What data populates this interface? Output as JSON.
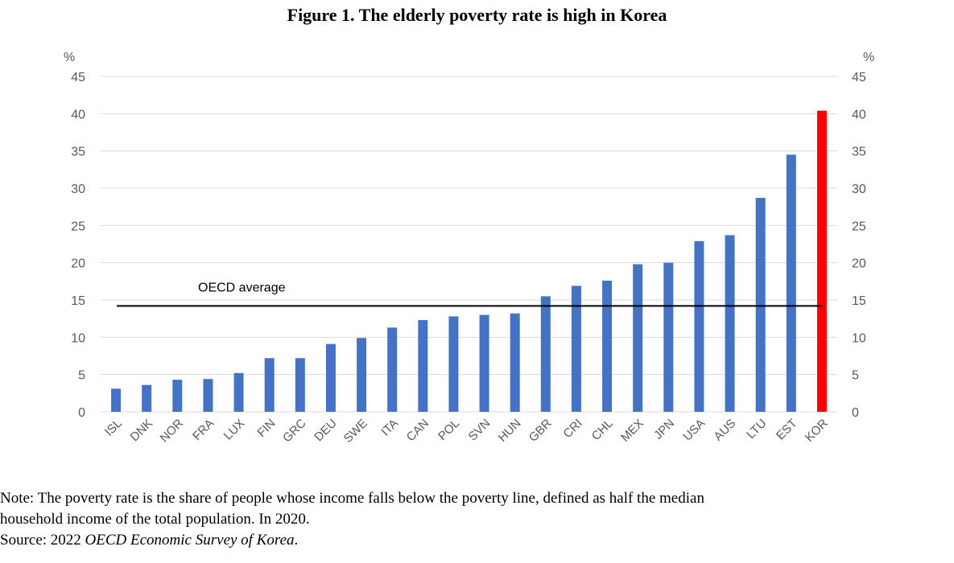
{
  "chart_data": {
    "type": "bar",
    "title": "Figure 1. The elderly poverty rate is high in Korea",
    "ylabel_left": "%",
    "ylabel_right": "%",
    "ylim": [
      0,
      45
    ],
    "yticks": [
      0,
      5,
      10,
      15,
      20,
      25,
      30,
      35,
      40,
      45
    ],
    "grid": true,
    "categories": [
      "ISL",
      "DNK",
      "NOR",
      "FRA",
      "LUX",
      "FIN",
      "GRC",
      "DEU",
      "SWE",
      "ITA",
      "CAN",
      "POL",
      "SVN",
      "HUN",
      "GBR",
      "CRI",
      "CHL",
      "MEX",
      "JPN",
      "USA",
      "AUS",
      "LTU",
      "EST",
      "KOR"
    ],
    "values": [
      3.1,
      3.6,
      4.3,
      4.4,
      5.2,
      7.2,
      7.2,
      9.1,
      9.9,
      11.3,
      12.3,
      12.8,
      13.0,
      13.2,
      15.5,
      16.9,
      17.6,
      19.8,
      20.0,
      22.9,
      23.7,
      28.7,
      34.5,
      40.4
    ],
    "highlight": {
      "category": "KOR",
      "color": "#ff0000"
    },
    "bar_color": "#4472c4",
    "reference_line": {
      "label": "OECD average",
      "value": 14.2,
      "color": "#000000"
    }
  },
  "note": {
    "line1": "Note: The poverty rate is the share of people whose income falls below the poverty line, defined as half the median",
    "line2": "household income of the total population. In 2020.",
    "source_prefix": "Source: 2022 ",
    "source_title": "OECD Economic Survey of Korea",
    "source_suffix": "."
  }
}
